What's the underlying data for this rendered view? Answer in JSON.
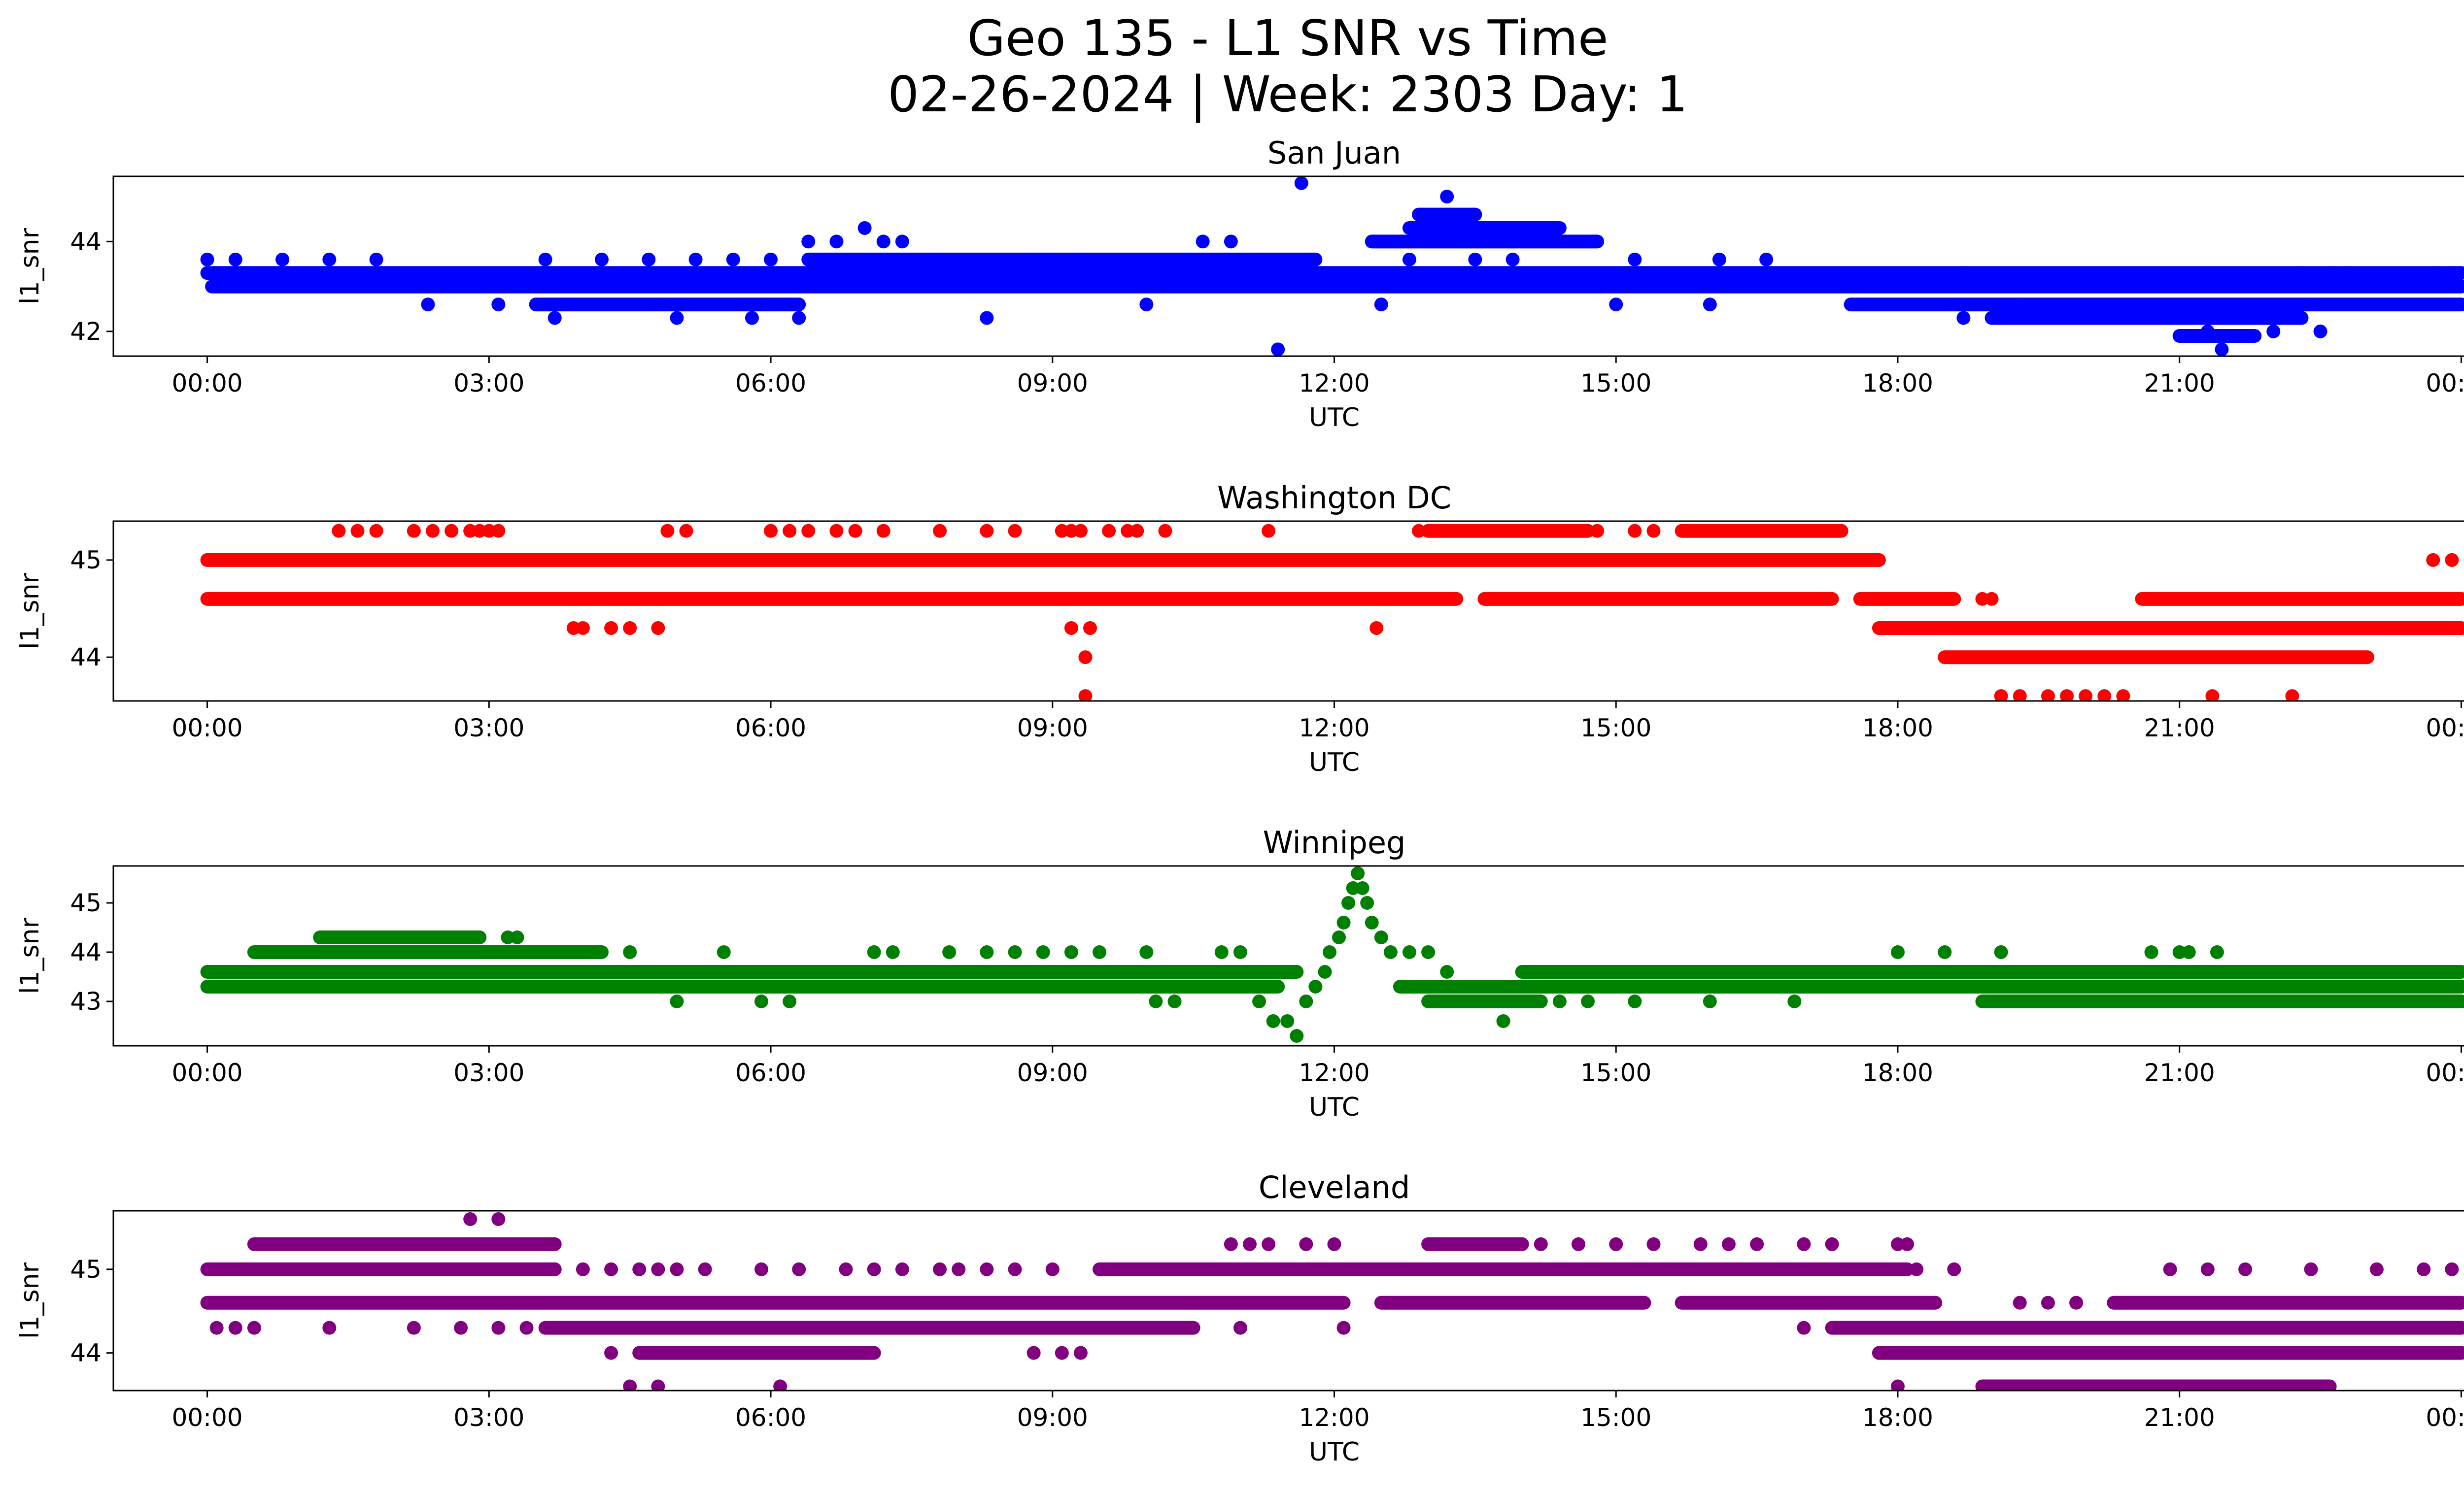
{
  "figure": {
    "title_line1": "Geo 135 - L1 SNR vs Time",
    "title_line2": "02-26-2024 | Week: 2303 Day: 1"
  },
  "chart_data": [
    {
      "type": "scatter",
      "title": "San Juan",
      "xlabel": "UTC",
      "ylabel": "l1_snr",
      "color": "#0000ff",
      "xlim": [
        -1,
        25
      ],
      "ylim": [
        41.45,
        45.45
      ],
      "xticks": [
        "00:00",
        "03:00",
        "06:00",
        "09:00",
        "12:00",
        "15:00",
        "18:00",
        "21:00",
        "00:00"
      ],
      "yticks": [
        42,
        44
      ],
      "bands": [
        {
          "y": 43.0,
          "from": 0.05,
          "to": 24
        },
        {
          "y": 43.3,
          "from": 0.0,
          "to": 24
        },
        {
          "y": 42.6,
          "from": 17.5,
          "to": 24
        },
        {
          "y": 43.6,
          "from": 6.4,
          "to": 11.8
        },
        {
          "y": 42.6,
          "from": 3.5,
          "to": 6.3
        },
        {
          "y": 44.0,
          "from": 12.4,
          "to": 14.8
        },
        {
          "y": 44.3,
          "from": 12.8,
          "to": 14.4
        },
        {
          "y": 44.6,
          "from": 12.9,
          "to": 13.5
        },
        {
          "y": 42.3,
          "from": 19.0,
          "to": 22.3
        },
        {
          "y": 41.9,
          "from": 21.0,
          "to": 21.8
        }
      ],
      "points": [
        [
          11.65,
          45.3
        ],
        [
          13.2,
          45.0
        ],
        [
          11.4,
          41.6
        ],
        [
          21.45,
          41.6
        ],
        [
          2.35,
          42.6
        ],
        [
          3.1,
          42.6
        ],
        [
          3.7,
          42.3
        ],
        [
          5.0,
          42.3
        ],
        [
          5.8,
          42.3
        ],
        [
          6.3,
          42.3
        ],
        [
          8.3,
          42.3
        ],
        [
          0.0,
          43.6
        ],
        [
          0.3,
          43.6
        ],
        [
          0.8,
          43.6
        ],
        [
          1.3,
          43.6
        ],
        [
          1.8,
          43.6
        ],
        [
          3.6,
          43.6
        ],
        [
          4.2,
          43.6
        ],
        [
          4.7,
          43.6
        ],
        [
          5.2,
          43.6
        ],
        [
          5.6,
          43.6
        ],
        [
          6.0,
          43.6
        ],
        [
          6.4,
          44.0
        ],
        [
          6.7,
          44.0
        ],
        [
          7.0,
          44.3
        ],
        [
          7.2,
          44.0
        ],
        [
          7.4,
          44.0
        ],
        [
          7.7,
          43.6
        ],
        [
          8.7,
          43.6
        ],
        [
          9.0,
          43.6
        ],
        [
          9.3,
          43.6
        ],
        [
          10.6,
          44.0
        ],
        [
          10.9,
          44.0
        ],
        [
          11.2,
          43.6
        ],
        [
          11.7,
          43.6
        ],
        [
          12.5,
          42.6
        ],
        [
          12.8,
          43.6
        ],
        [
          13.5,
          43.6
        ],
        [
          13.9,
          43.6
        ],
        [
          15.2,
          43.6
        ],
        [
          16.1,
          43.6
        ],
        [
          16.6,
          43.6
        ],
        [
          17.0,
          43.0
        ],
        [
          18.7,
          43.3
        ],
        [
          18.7,
          42.3
        ],
        [
          19.3,
          42.6
        ],
        [
          21.3,
          42.0
        ],
        [
          22.0,
          42.0
        ],
        [
          22.3,
          43.3
        ],
        [
          22.6,
          43.3
        ],
        [
          22.8,
          43.3
        ],
        [
          23.7,
          43.3
        ],
        [
          23.9,
          43.3
        ],
        [
          22.5,
          42.0
        ],
        [
          16.0,
          42.6
        ],
        [
          15.0,
          42.6
        ],
        [
          10.0,
          42.6
        ],
        [
          9.7,
          43.0
        ]
      ]
    },
    {
      "type": "scatter",
      "title": "Washington DC",
      "xlabel": "UTC",
      "ylabel": "l1_snr",
      "color": "#ff0000",
      "xlim": [
        -1,
        25
      ],
      "ylim": [
        43.55,
        45.4
      ],
      "xticks": [
        "00:00",
        "03:00",
        "06:00",
        "09:00",
        "12:00",
        "15:00",
        "18:00",
        "21:00",
        "00:00"
      ],
      "yticks": [
        44,
        45
      ],
      "bands": [
        {
          "y": 45.0,
          "from": 0.0,
          "to": 17.8
        },
        {
          "y": 44.6,
          "from": 0.0,
          "to": 13.3
        },
        {
          "y": 44.6,
          "from": 13.6,
          "to": 17.3
        },
        {
          "y": 44.6,
          "from": 17.6,
          "to": 18.6
        },
        {
          "y": 44.6,
          "from": 20.6,
          "to": 24
        },
        {
          "y": 44.3,
          "from": 17.8,
          "to": 24
        },
        {
          "y": 44.0,
          "from": 18.5,
          "to": 23.0
        },
        {
          "y": 45.3,
          "from": 13.0,
          "to": 14.7
        },
        {
          "y": 45.3,
          "from": 15.7,
          "to": 17.4
        }
      ],
      "points": [
        [
          1.4,
          45.3
        ],
        [
          1.6,
          45.3
        ],
        [
          1.8,
          45.3
        ],
        [
          2.2,
          45.3
        ],
        [
          2.4,
          45.3
        ],
        [
          2.6,
          45.3
        ],
        [
          2.8,
          45.3
        ],
        [
          2.9,
          45.3
        ],
        [
          3.0,
          45.3
        ],
        [
          3.1,
          45.3
        ],
        [
          4.9,
          45.3
        ],
        [
          5.1,
          45.3
        ],
        [
          6.0,
          45.3
        ],
        [
          6.2,
          45.3
        ],
        [
          6.4,
          45.3
        ],
        [
          6.7,
          45.3
        ],
        [
          6.9,
          45.3
        ],
        [
          7.2,
          45.3
        ],
        [
          7.8,
          45.3
        ],
        [
          8.3,
          45.3
        ],
        [
          8.6,
          45.3
        ],
        [
          9.1,
          45.3
        ],
        [
          9.2,
          45.3
        ],
        [
          9.3,
          45.3
        ],
        [
          9.6,
          45.3
        ],
        [
          9.8,
          45.3
        ],
        [
          9.9,
          45.3
        ],
        [
          10.2,
          45.3
        ],
        [
          11.3,
          45.3
        ],
        [
          12.9,
          45.3
        ],
        [
          14.8,
          45.3
        ],
        [
          15.2,
          45.3
        ],
        [
          15.4,
          45.3
        ],
        [
          3.9,
          44.3
        ],
        [
          4.0,
          44.3
        ],
        [
          4.3,
          44.3
        ],
        [
          4.5,
          44.3
        ],
        [
          4.8,
          44.3
        ],
        [
          9.2,
          44.3
        ],
        [
          9.4,
          44.3
        ],
        [
          12.45,
          44.3
        ],
        [
          9.35,
          44.0
        ],
        [
          9.35,
          43.6
        ],
        [
          19.1,
          43.6
        ],
        [
          19.3,
          43.6
        ],
        [
          19.6,
          43.6
        ],
        [
          19.8,
          43.6
        ],
        [
          20.0,
          43.6
        ],
        [
          20.2,
          43.6
        ],
        [
          20.4,
          43.6
        ],
        [
          21.35,
          43.6
        ],
        [
          22.2,
          43.6
        ],
        [
          23.7,
          45.0
        ],
        [
          23.9,
          45.0
        ],
        [
          18.9,
          44.6
        ],
        [
          19.0,
          44.6
        ]
      ]
    },
    {
      "type": "scatter",
      "title": "Winnipeg",
      "xlabel": "UTC",
      "ylabel": "l1_snr",
      "color": "#008000",
      "xlim": [
        -1,
        25
      ],
      "ylim": [
        42.1,
        45.75
      ],
      "xticks": [
        "00:00",
        "03:00",
        "06:00",
        "09:00",
        "12:00",
        "15:00",
        "18:00",
        "21:00",
        "00:00"
      ],
      "yticks": [
        43,
        44,
        45
      ],
      "bands": [
        {
          "y": 43.6,
          "from": 0.0,
          "to": 11.6
        },
        {
          "y": 43.3,
          "from": 0.0,
          "to": 11.4
        },
        {
          "y": 43.3,
          "from": 12.7,
          "to": 24
        },
        {
          "y": 43.6,
          "from": 14.0,
          "to": 24
        },
        {
          "y": 44.0,
          "from": 0.5,
          "to": 4.2
        },
        {
          "y": 44.3,
          "from": 1.2,
          "to": 2.9
        },
        {
          "y": 43.0,
          "from": 13.0,
          "to": 14.2
        },
        {
          "y": 43.0,
          "from": 18.9,
          "to": 24
        }
      ],
      "points": [
        [
          11.2,
          43.0
        ],
        [
          11.35,
          42.6
        ],
        [
          11.5,
          42.6
        ],
        [
          11.6,
          42.3
        ],
        [
          11.7,
          43.0
        ],
        [
          11.8,
          43.3
        ],
        [
          11.9,
          43.6
        ],
        [
          11.95,
          44.0
        ],
        [
          12.05,
          44.3
        ],
        [
          12.1,
          44.6
        ],
        [
          12.15,
          45.0
        ],
        [
          12.2,
          45.3
        ],
        [
          12.25,
          45.6
        ],
        [
          12.3,
          45.3
        ],
        [
          12.35,
          45.0
        ],
        [
          12.4,
          44.6
        ],
        [
          12.5,
          44.3
        ],
        [
          12.6,
          44.0
        ],
        [
          12.8,
          44.0
        ],
        [
          13.0,
          44.0
        ],
        [
          13.2,
          43.6
        ],
        [
          13.8,
          42.6
        ],
        [
          3.2,
          44.3
        ],
        [
          3.3,
          44.3
        ],
        [
          4.5,
          44.0
        ],
        [
          5.5,
          44.0
        ],
        [
          7.1,
          44.0
        ],
        [
          7.3,
          44.0
        ],
        [
          7.9,
          44.0
        ],
        [
          8.3,
          44.0
        ],
        [
          8.6,
          44.0
        ],
        [
          8.9,
          44.0
        ],
        [
          9.2,
          44.0
        ],
        [
          9.5,
          44.0
        ],
        [
          10.0,
          44.0
        ],
        [
          10.8,
          44.0
        ],
        [
          11.0,
          44.0
        ],
        [
          5.0,
          43.0
        ],
        [
          5.9,
          43.0
        ],
        [
          6.2,
          43.0
        ],
        [
          10.1,
          43.0
        ],
        [
          10.3,
          43.0
        ],
        [
          14.4,
          43.0
        ],
        [
          14.7,
          43.0
        ],
        [
          15.2,
          43.0
        ],
        [
          16.0,
          43.0
        ],
        [
          16.9,
          43.0
        ],
        [
          18.0,
          44.0
        ],
        [
          18.5,
          44.0
        ],
        [
          19.1,
          44.0
        ],
        [
          20.7,
          44.0
        ],
        [
          21.0,
          44.0
        ],
        [
          21.1,
          44.0
        ],
        [
          21.4,
          44.0
        ]
      ]
    },
    {
      "type": "scatter",
      "title": "Cleveland",
      "xlabel": "UTC",
      "ylabel": "l1_snr",
      "color": "#800080",
      "xlim": [
        -1,
        25
      ],
      "ylim": [
        43.55,
        45.7
      ],
      "xticks": [
        "00:00",
        "03:00",
        "06:00",
        "09:00",
        "12:00",
        "15:00",
        "18:00",
        "21:00",
        "00:00"
      ],
      "yticks": [
        44,
        45
      ],
      "bands": [
        {
          "y": 45.0,
          "from": 0.0,
          "to": 3.7
        },
        {
          "y": 45.0,
          "from": 9.5,
          "to": 18.1
        },
        {
          "y": 44.6,
          "from": 0.0,
          "to": 12.1
        },
        {
          "y": 44.6,
          "from": 12.5,
          "to": 15.3
        },
        {
          "y": 44.6,
          "from": 15.7,
          "to": 18.4
        },
        {
          "y": 44.6,
          "from": 20.3,
          "to": 24
        },
        {
          "y": 44.3,
          "from": 3.6,
          "to": 10.5
        },
        {
          "y": 44.3,
          "from": 17.3,
          "to": 24
        },
        {
          "y": 44.0,
          "from": 4.6,
          "to": 7.1
        },
        {
          "y": 44.0,
          "from": 17.8,
          "to": 24
        },
        {
          "y": 45.3,
          "from": 0.5,
          "to": 3.7
        },
        {
          "y": 45.3,
          "from": 13.0,
          "to": 14.0
        },
        {
          "y": 43.6,
          "from": 18.9,
          "to": 22.6
        }
      ],
      "points": [
        [
          2.8,
          45.6
        ],
        [
          3.1,
          45.6
        ],
        [
          0.1,
          44.3
        ],
        [
          0.3,
          44.3
        ],
        [
          0.5,
          44.3
        ],
        [
          1.3,
          44.3
        ],
        [
          2.2,
          44.3
        ],
        [
          2.7,
          44.3
        ],
        [
          3.1,
          44.3
        ],
        [
          3.4,
          44.3
        ],
        [
          3.7,
          45.0
        ],
        [
          4.0,
          45.0
        ],
        [
          4.3,
          45.0
        ],
        [
          4.6,
          45.0
        ],
        [
          4.8,
          45.0
        ],
        [
          5.0,
          45.0
        ],
        [
          5.3,
          45.0
        ],
        [
          5.9,
          45.0
        ],
        [
          6.3,
          45.0
        ],
        [
          6.8,
          45.0
        ],
        [
          7.1,
          45.0
        ],
        [
          7.4,
          45.0
        ],
        [
          7.8,
          45.0
        ],
        [
          8.0,
          45.0
        ],
        [
          8.3,
          45.0
        ],
        [
          8.6,
          45.0
        ],
        [
          9.0,
          45.0
        ],
        [
          4.3,
          44.0
        ],
        [
          4.5,
          43.6
        ],
        [
          4.8,
          43.6
        ],
        [
          6.1,
          43.6
        ],
        [
          8.8,
          44.0
        ],
        [
          9.1,
          44.0
        ],
        [
          9.3,
          44.0
        ],
        [
          11.0,
          44.3
        ],
        [
          12.1,
          44.3
        ],
        [
          10.9,
          45.3
        ],
        [
          11.1,
          45.3
        ],
        [
          11.3,
          45.3
        ],
        [
          11.7,
          45.3
        ],
        [
          12.0,
          45.3
        ],
        [
          14.2,
          45.3
        ],
        [
          14.6,
          45.3
        ],
        [
          15.0,
          45.3
        ],
        [
          15.4,
          45.3
        ],
        [
          15.9,
          45.3
        ],
        [
          16.2,
          45.3
        ],
        [
          16.5,
          45.3
        ],
        [
          17.0,
          45.3
        ],
        [
          17.3,
          45.3
        ],
        [
          18.0,
          45.3
        ],
        [
          18.1,
          45.3
        ],
        [
          18.2,
          45.0
        ],
        [
          18.6,
          45.0
        ],
        [
          18.0,
          43.6
        ],
        [
          17.0,
          44.3
        ],
        [
          20.9,
          45.0
        ],
        [
          21.3,
          45.0
        ],
        [
          21.7,
          45.0
        ],
        [
          22.4,
          45.0
        ],
        [
          23.1,
          45.0
        ],
        [
          23.6,
          45.0
        ],
        [
          23.9,
          45.0
        ],
        [
          19.3,
          44.6
        ],
        [
          19.6,
          44.6
        ],
        [
          19.9,
          44.6
        ]
      ]
    }
  ]
}
